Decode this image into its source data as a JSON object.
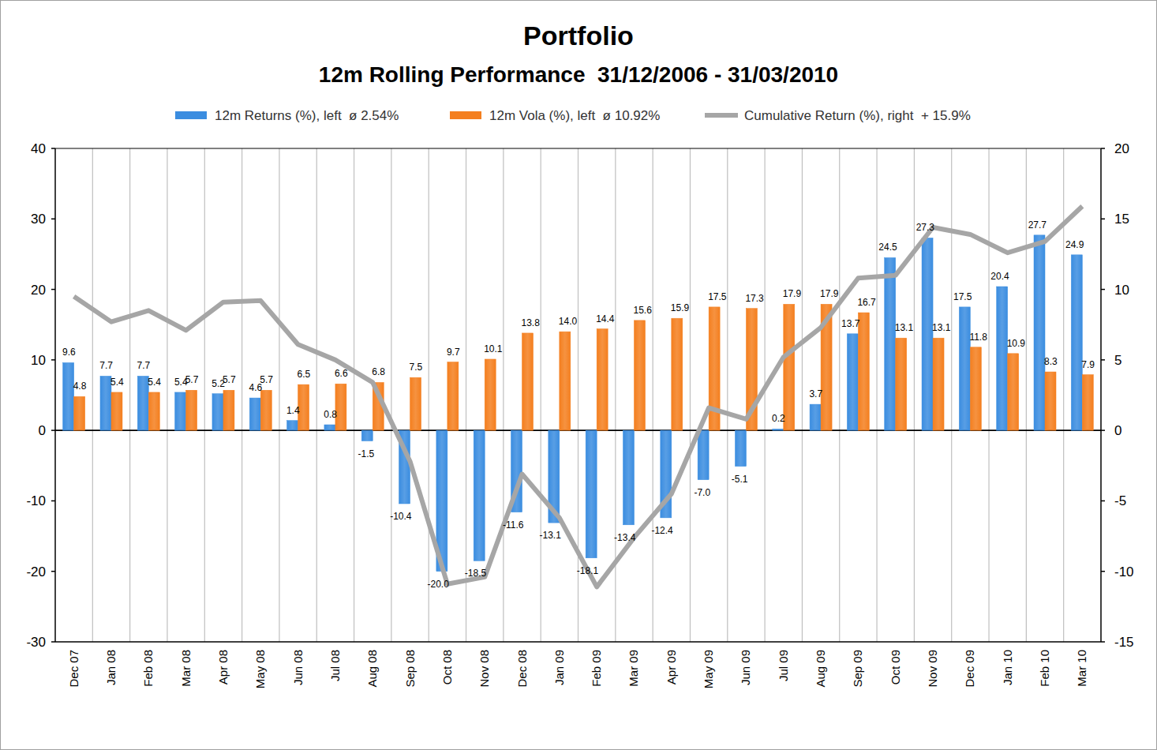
{
  "chart_data": {
    "type": "bar",
    "title": "Portfolio",
    "subtitle": "12m Rolling Performance  31/12/2006 - 31/03/2010",
    "categories": [
      "Dec 07",
      "Jan 08",
      "Feb 08",
      "Mar 08",
      "Apr 08",
      "May 08",
      "Jun 08",
      "Jul 08",
      "Aug 08",
      "Sep 08",
      "Oct 08",
      "Nov 08",
      "Dec 08",
      "Jan 09",
      "Feb 09",
      "Mar 09",
      "Apr 09",
      "May 09",
      "Jun 09",
      "Jul 09",
      "Aug 09",
      "Sep 09",
      "Oct 09",
      "Nov 09",
      "Dec 09",
      "Jan 10",
      "Feb 10",
      "Mar 10"
    ],
    "series": [
      {
        "name": "12m Returns (%), left  ø 2.54%",
        "type": "bar",
        "color": "#3b8de0",
        "values": [
          9.6,
          7.7,
          7.7,
          5.4,
          5.2,
          4.6,
          1.4,
          0.8,
          -1.5,
          -10.4,
          -20.0,
          -18.5,
          -11.6,
          -13.1,
          -18.1,
          -13.4,
          -12.4,
          -7.0,
          -5.1,
          0.2,
          3.7,
          13.7,
          24.5,
          27.3,
          17.5,
          20.4,
          27.7,
          24.9
        ],
        "value_labels": [
          "9.6",
          "7.7",
          "7.7",
          "5.4",
          "5.2",
          "4.6",
          "1.4",
          "0.8",
          "-1.5",
          "-10.4",
          "-20.0",
          "-18.5",
          "-11.6",
          "-13.1",
          "-18.1",
          "-13.4",
          "-12.4",
          "-7.0",
          "-5.1",
          "0.2",
          "3.7",
          "13.7",
          "24.5",
          "27.3",
          "17.5",
          "20.4",
          "27.7",
          "24.9"
        ]
      },
      {
        "name": "12m Vola (%), left  ø 10.92%",
        "type": "bar",
        "color": "#f47f1f",
        "values": [
          4.8,
          5.4,
          5.4,
          5.7,
          5.7,
          5.7,
          6.5,
          6.6,
          6.8,
          7.5,
          9.7,
          10.1,
          13.8,
          14.0,
          14.4,
          15.6,
          15.9,
          17.5,
          17.3,
          17.9,
          17.9,
          16.7,
          13.1,
          13.1,
          11.8,
          10.9,
          8.3,
          7.9
        ],
        "value_labels": [
          "4.8",
          "5.4",
          "5.4",
          "5.7",
          "5.7",
          "5.7",
          "6.5",
          "6.6",
          "6.8",
          "7.5",
          "9.7",
          "10.1",
          "13.8",
          "14.0",
          "14.4",
          "15.6",
          "15.9",
          "17.5",
          "17.3",
          "17.9",
          "17.9",
          "16.7",
          "13.1",
          "13.1",
          "11.8",
          "10.9",
          "8.3",
          "7.9"
        ]
      },
      {
        "name": "Cumulative Return (%), right  + 15.9%",
        "type": "line",
        "axis": "y2",
        "color": "#a6a6a6",
        "line_style": "solid",
        "marker": "none",
        "values": [
          9.5,
          7.7,
          8.5,
          7.1,
          9.1,
          9.2,
          6.1,
          5.0,
          3.4,
          -2.2,
          -10.9,
          -10.4,
          -3.1,
          -6.2,
          -11.1,
          -7.6,
          -4.5,
          1.6,
          0.8,
          5.2,
          7.3,
          10.8,
          11.0,
          14.4,
          13.9,
          12.6,
          13.4,
          15.9
        ]
      }
    ],
    "ylim": [
      -30,
      40
    ],
    "yticks": [
      -30,
      -20,
      -10,
      0,
      10,
      20,
      30,
      40
    ],
    "y2lim": [
      -15,
      20
    ],
    "y2ticks": [
      -15,
      -10,
      -5,
      0,
      5,
      10,
      15,
      20
    ],
    "grid": true,
    "data_labels": true,
    "legend": "top"
  }
}
